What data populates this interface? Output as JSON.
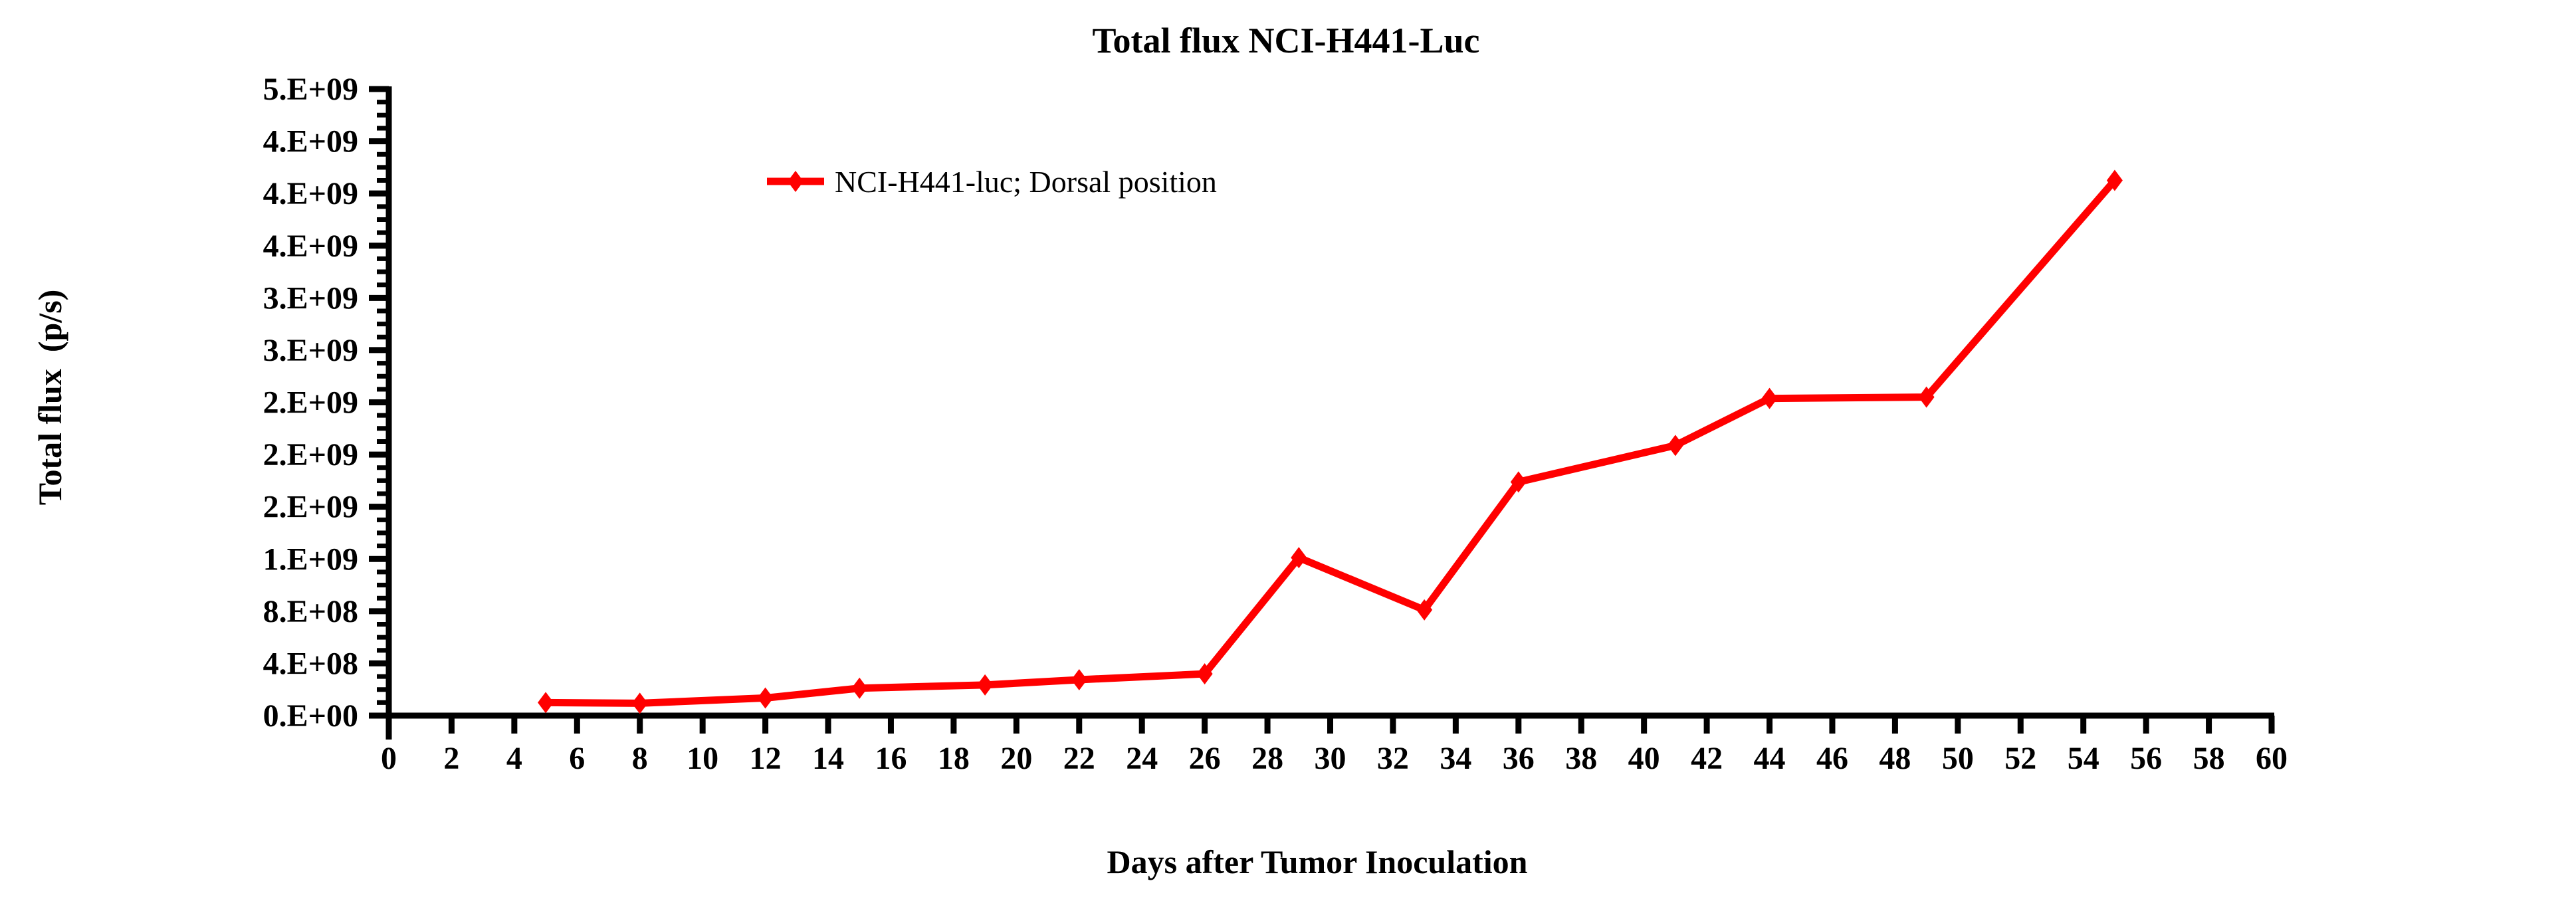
{
  "chart_data": {
    "type": "line",
    "title": "Total flux NCI-H441-Luc",
    "xlabel": "Days after Tumor Inoculation",
    "ylabel": "Total flux  (p/s)",
    "background_color": "#FFFFFF",
    "axis_color": "#000000",
    "grid": false,
    "xlim": [
      0,
      60
    ],
    "x_tick_step": 2,
    "x_tick_labels": [
      "0",
      "2",
      "4",
      "6",
      "8",
      "10",
      "12",
      "14",
      "16",
      "18",
      "20",
      "22",
      "24",
      "26",
      "28",
      "30",
      "32",
      "34",
      "36",
      "38",
      "40",
      "42",
      "44",
      "46",
      "48",
      "50",
      "52",
      "54",
      "56",
      "58",
      "60"
    ],
    "ylim": [
      0,
      4800000000.0
    ],
    "y_major_tick_step": 400000000.0,
    "y_minor_tick_step": 100000000.0,
    "y_tick_labels": [
      "0.E+00",
      "4.E+08",
      "8.E+08",
      "1.E+09",
      "2.E+09",
      "2.E+09",
      "2.E+09",
      "3.E+09",
      "3.E+09",
      "4.E+09",
      "4.E+09",
      "4.E+09",
      "5.E+09"
    ],
    "legend_position": "inside-upper-left",
    "series": [
      {
        "name": "NCI-H441-luc; Dorsal position",
        "color": "#FF0000",
        "marker": "diamond",
        "x": [
          5,
          8,
          12,
          15,
          19,
          22,
          26,
          29,
          33,
          36,
          41,
          44,
          49,
          55
        ],
        "y": [
          100000000.0,
          95000000.0,
          135000000.0,
          210000000.0,
          235000000.0,
          275000000.0,
          320000000.0,
          1210000000.0,
          810000000.0,
          1790000000.0,
          2070000000.0,
          2430000000.0,
          2440000000.0,
          4100000000.0
        ]
      }
    ]
  }
}
